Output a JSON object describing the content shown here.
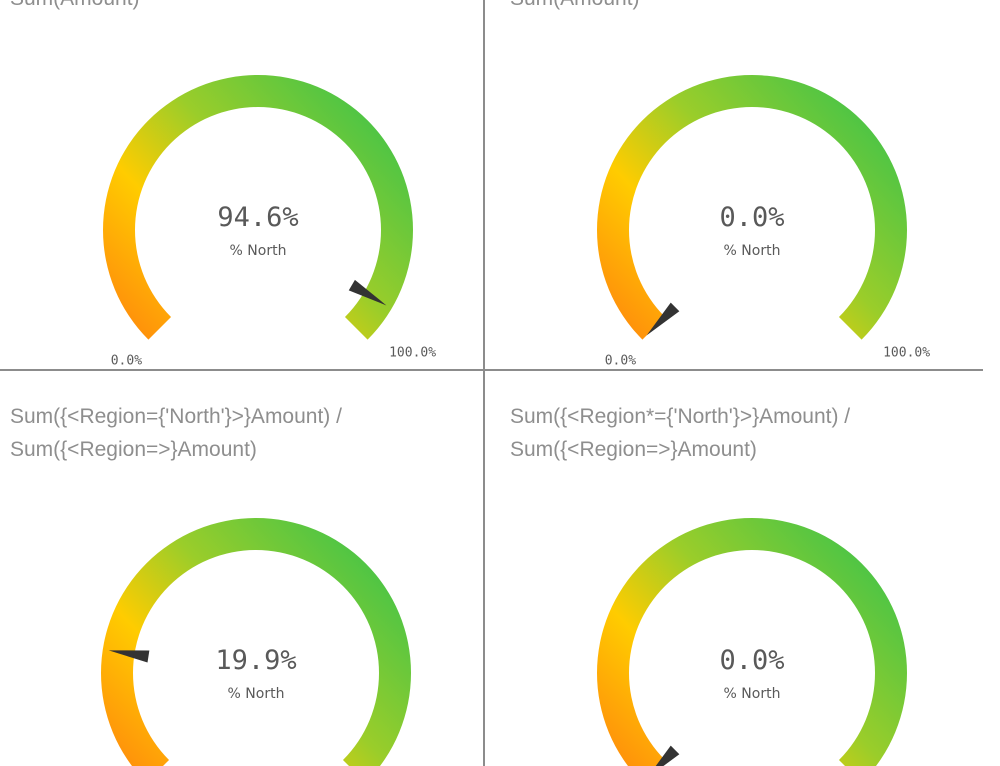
{
  "colors": {
    "low": "#ff7f0e",
    "mid": "#ffcc00",
    "high": "#3fc34a",
    "needle": "#333333"
  },
  "chart_data": [
    {
      "type": "gauge",
      "title": "Sum(Amount)",
      "value": 94.6,
      "value_label": "94.6%",
      "measure_label": "% North",
      "range": [
        0,
        100
      ],
      "min_label": "0.0%",
      "max_label": "100.0%"
    },
    {
      "type": "gauge",
      "title": "Sum(Amount)",
      "value": 0.0,
      "value_label": "0.0%",
      "measure_label": "% North",
      "range": [
        0,
        100
      ],
      "min_label": "0.0%",
      "max_label": "100.0%"
    },
    {
      "type": "gauge",
      "title": "Sum({<Region={'North'}>}Amount) /\nSum({<Region=>}Amount)",
      "value": 19.9,
      "value_label": "19.9%",
      "measure_label": "% North",
      "range": [
        0,
        100
      ],
      "min_label": "",
      "max_label": ""
    },
    {
      "type": "gauge",
      "title": "Sum({<Region*={'North'}>}Amount) /\nSum({<Region=>}Amount)",
      "value": 0.0,
      "value_label": "0.0%",
      "measure_label": "% North",
      "range": [
        0,
        100
      ],
      "min_label": "",
      "max_label": ""
    }
  ]
}
